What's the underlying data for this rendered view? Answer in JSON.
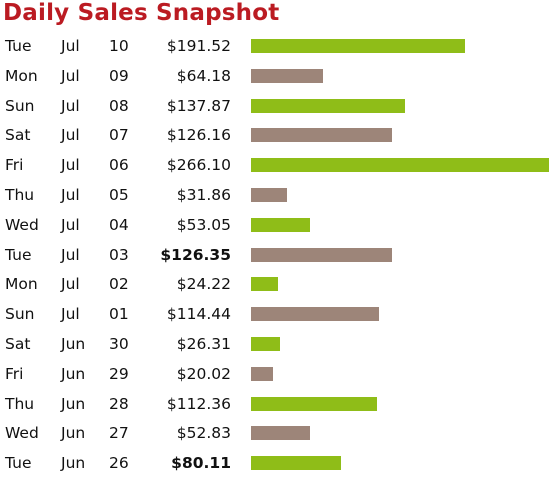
{
  "title": "Daily Sales Snapshot",
  "colors": {
    "title": "#bb1b22",
    "bar_primary": "#8fbd18",
    "bar_secondary": "#9d8579",
    "text": "#111111"
  },
  "chart_data": {
    "type": "bar",
    "orientation": "horizontal",
    "title": "Daily Sales Snapshot",
    "xlim": [
      0,
      266.1
    ],
    "grid": false,
    "rows": [
      {
        "dow": "Tue",
        "month": "Jul",
        "day": "10",
        "amount": "$191.52",
        "value": 191.52,
        "bold": false,
        "color": "primary"
      },
      {
        "dow": "Mon",
        "month": "Jul",
        "day": "09",
        "amount": "$64.18",
        "value": 64.18,
        "bold": false,
        "color": "secondary"
      },
      {
        "dow": "Sun",
        "month": "Jul",
        "day": "08",
        "amount": "$137.87",
        "value": 137.87,
        "bold": false,
        "color": "primary"
      },
      {
        "dow": "Sat",
        "month": "Jul",
        "day": "07",
        "amount": "$126.16",
        "value": 126.16,
        "bold": false,
        "color": "secondary"
      },
      {
        "dow": "Fri",
        "month": "Jul",
        "day": "06",
        "amount": "$266.10",
        "value": 266.1,
        "bold": false,
        "color": "primary"
      },
      {
        "dow": "Thu",
        "month": "Jul",
        "day": "05",
        "amount": "$31.86",
        "value": 31.86,
        "bold": false,
        "color": "secondary"
      },
      {
        "dow": "Wed",
        "month": "Jul",
        "day": "04",
        "amount": "$53.05",
        "value": 53.05,
        "bold": false,
        "color": "primary"
      },
      {
        "dow": "Tue",
        "month": "Jul",
        "day": "03",
        "amount": "$126.35",
        "value": 126.35,
        "bold": true,
        "color": "secondary"
      },
      {
        "dow": "Mon",
        "month": "Jul",
        "day": "02",
        "amount": "$24.22",
        "value": 24.22,
        "bold": false,
        "color": "primary"
      },
      {
        "dow": "Sun",
        "month": "Jul",
        "day": "01",
        "amount": "$114.44",
        "value": 114.44,
        "bold": false,
        "color": "secondary"
      },
      {
        "dow": "Sat",
        "month": "Jun",
        "day": "30",
        "amount": "$26.31",
        "value": 26.31,
        "bold": false,
        "color": "primary"
      },
      {
        "dow": "Fri",
        "month": "Jun",
        "day": "29",
        "amount": "$20.02",
        "value": 20.02,
        "bold": false,
        "color": "secondary"
      },
      {
        "dow": "Thu",
        "month": "Jun",
        "day": "28",
        "amount": "$112.36",
        "value": 112.36,
        "bold": false,
        "color": "primary"
      },
      {
        "dow": "Wed",
        "month": "Jun",
        "day": "27",
        "amount": "$52.83",
        "value": 52.83,
        "bold": false,
        "color": "secondary"
      },
      {
        "dow": "Tue",
        "month": "Jun",
        "day": "26",
        "amount": "$80.11",
        "value": 80.11,
        "bold": true,
        "color": "primary"
      }
    ]
  }
}
